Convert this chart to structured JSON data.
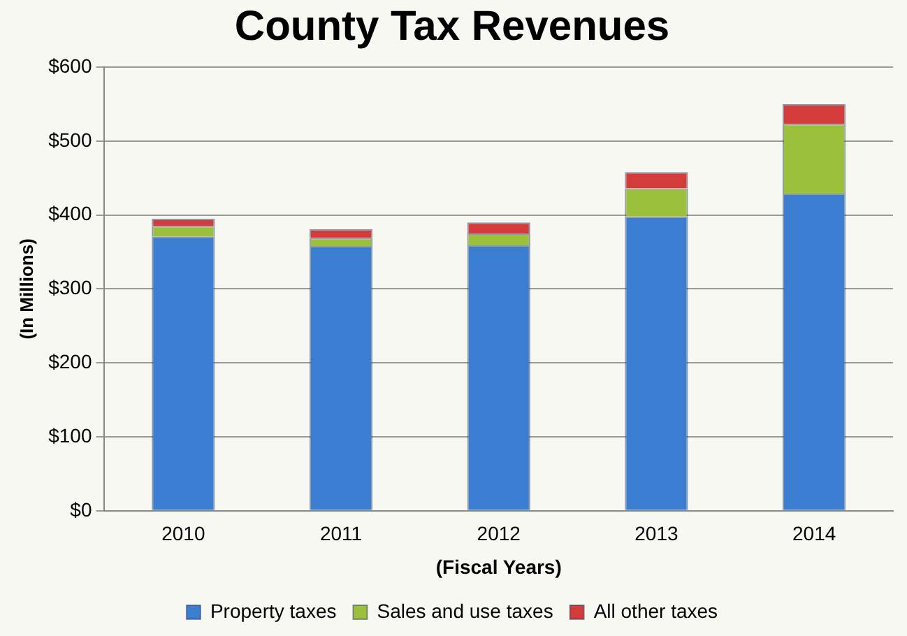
{
  "chart_data": {
    "type": "bar",
    "title": "County Tax Revenues",
    "xlabel": "(Fiscal Years)",
    "ylabel": "(In Millions)",
    "categories": [
      "2010",
      "2011",
      "2012",
      "2013",
      "2014"
    ],
    "stacked": true,
    "series": [
      {
        "name": "Property taxes",
        "color": "#3b7dd0",
        "values": [
          371,
          358,
          359,
          398,
          429
        ]
      },
      {
        "name": "Sales and use taxes",
        "color": "#9bc13c",
        "values": [
          14,
          11,
          16,
          38,
          94
        ]
      },
      {
        "name": "All other taxes",
        "color": "#d43c3c",
        "values": [
          10,
          12,
          15,
          22,
          27
        ]
      }
    ],
    "ylim": [
      0,
      600
    ],
    "yticks": [
      {
        "value": 0,
        "label": "$0"
      },
      {
        "value": 100,
        "label": "$100"
      },
      {
        "value": 200,
        "label": "$200"
      },
      {
        "value": 300,
        "label": "$300"
      },
      {
        "value": 400,
        "label": "$400"
      },
      {
        "value": 500,
        "label": "$500"
      },
      {
        "value": 600,
        "label": "$600"
      }
    ],
    "grid": "y",
    "legend": "bottom"
  }
}
